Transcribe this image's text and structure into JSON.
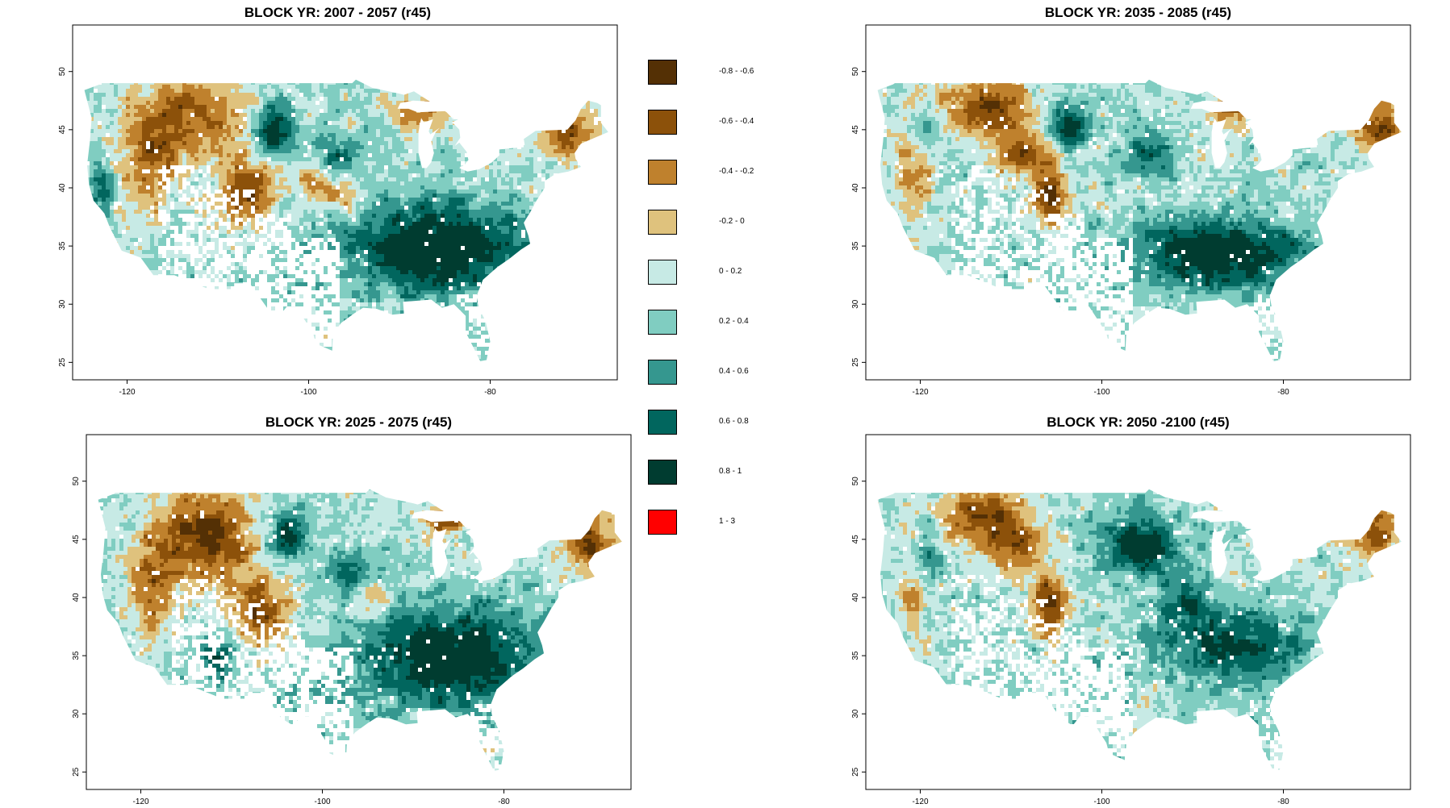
{
  "panels": [
    {
      "id": "p1",
      "title": "BLOCK YR: 2007 - 2057 (r45)",
      "seed": 11,
      "brown_spots": [
        [
          -113,
          46,
          5,
          3.5,
          0.8
        ],
        [
          -72,
          45,
          3,
          2.5,
          0.7
        ],
        [
          -107,
          40,
          3,
          3,
          0.7
        ],
        [
          -88,
          46.5,
          3,
          1.5,
          0.6
        ],
        [
          -97,
          39.5,
          3,
          1.5,
          0.5
        ],
        [
          -118,
          42.5,
          3,
          5,
          0.5
        ],
        [
          -100,
          41,
          2,
          1.5,
          0.4
        ]
      ],
      "teal_spots": [
        [
          -86,
          35,
          10,
          4,
          0.9
        ],
        [
          -104,
          45,
          2,
          2,
          0.8
        ],
        [
          -113,
          45,
          2,
          2,
          0.3
        ],
        [
          -97,
          43,
          3,
          2,
          0.4
        ],
        [
          -123,
          40,
          1.5,
          2.5,
          0.5
        ]
      ]
    },
    {
      "id": "p2",
      "title": "BLOCK YR: 2035 - 2085 (r45)",
      "seed": 23,
      "brown_spots": [
        [
          -113,
          47,
          5,
          2.5,
          0.8
        ],
        [
          -70,
          45.5,
          3,
          2.5,
          0.7
        ],
        [
          -106,
          39.5,
          2,
          3,
          0.8
        ],
        [
          -86,
          47,
          3,
          1.5,
          0.6
        ],
        [
          -109,
          43,
          3,
          2,
          0.6
        ],
        [
          -121,
          43,
          2,
          5,
          0.5
        ]
      ],
      "teal_spots": [
        [
          -87,
          34.5,
          9,
          3,
          0.9
        ],
        [
          -104,
          45.5,
          2,
          2,
          0.8
        ],
        [
          -95,
          43,
          3,
          2,
          0.5
        ],
        [
          -120,
          45,
          2,
          2,
          0.5
        ]
      ]
    },
    {
      "id": "p3",
      "title": "BLOCK YR: 2025 - 2075 (r45)",
      "seed": 37,
      "brown_spots": [
        [
          -113,
          45.5,
          5,
          4,
          0.85
        ],
        [
          -71,
          45,
          3,
          2.5,
          0.75
        ],
        [
          -107,
          39,
          3,
          3,
          0.75
        ],
        [
          -86,
          47,
          3,
          1.5,
          0.6
        ],
        [
          -119,
          41.5,
          2.5,
          5,
          0.55
        ],
        [
          -95,
          40,
          2,
          1.5,
          0.4
        ]
      ],
      "teal_spots": [
        [
          -86,
          35,
          10,
          4,
          0.9
        ],
        [
          -104,
          45.5,
          2,
          2,
          0.8
        ],
        [
          -97,
          42.5,
          3,
          2,
          0.4
        ],
        [
          -112,
          35,
          2,
          2,
          0.6
        ]
      ]
    },
    {
      "id": "p4",
      "title": "BLOCK YR: 2050 -2100 (r45)",
      "seed": 53,
      "brown_spots": [
        [
          -113,
          47,
          5,
          2.5,
          0.75
        ],
        [
          -70,
          45.5,
          2.5,
          2.5,
          0.7
        ],
        [
          -106,
          39.5,
          2,
          3,
          0.8
        ],
        [
          -110,
          44,
          3,
          2,
          0.55
        ],
        [
          -121,
          42,
          1.5,
          5,
          0.5
        ]
      ],
      "teal_spots": [
        [
          -96,
          44.5,
          4,
          2.5,
          0.85
        ],
        [
          -86,
          36,
          8,
          3,
          0.7
        ],
        [
          -120,
          44,
          2,
          3,
          0.6
        ],
        [
          -91,
          40,
          3,
          2,
          0.5
        ]
      ]
    }
  ],
  "axes": {
    "x_ticks": [
      "-120",
      "-100",
      "-80"
    ],
    "x_tick_values": [
      -120,
      -100,
      -80
    ],
    "y_ticks": [
      "25",
      "30",
      "35",
      "40",
      "45",
      "50"
    ],
    "y_tick_values": [
      25,
      30,
      35,
      40,
      45,
      50
    ],
    "lon_range": [
      -126,
      -66
    ],
    "lat_range": [
      23.5,
      54
    ]
  },
  "legend": [
    {
      "label": "-0.8 - -0.6",
      "color": "#543005"
    },
    {
      "label": "-0.6 - -0.4",
      "color": "#8C510A"
    },
    {
      "label": "-0.4 - -0.2",
      "color": "#BF812D"
    },
    {
      "label": "-0.2 - 0",
      "color": "#DFC27D"
    },
    {
      "label": "0 - 0.2",
      "color": "#C7EAE5"
    },
    {
      "label": "0.2 - 0.4",
      "color": "#80CDC1"
    },
    {
      "label": "0.4 - 0.6",
      "color": "#35978F"
    },
    {
      "label": "0.6 - 0.8",
      "color": "#01665E"
    },
    {
      "label": "0.8 - 1",
      "color": "#003C30"
    },
    {
      "label": "1 - 3",
      "color": "#FF0000"
    }
  ]
}
